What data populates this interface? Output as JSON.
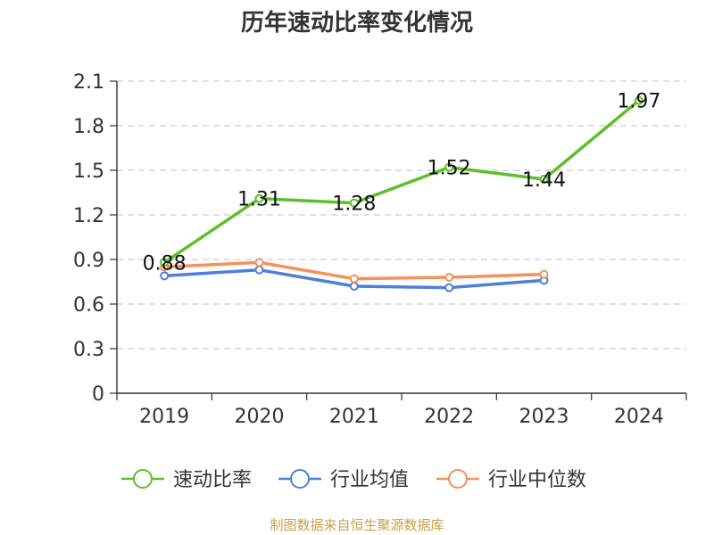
{
  "chart_data": {
    "type": "line",
    "title": "历年速动比率变化情况",
    "categories": [
      "2019",
      "2020",
      "2021",
      "2022",
      "2023",
      "2024"
    ],
    "ylim": [
      0,
      2.1
    ],
    "yticks": [
      "0",
      "0.3",
      "0.6",
      "0.9",
      "1.2",
      "1.5",
      "1.8",
      "2.1"
    ],
    "grid": true,
    "legend_position": "bottom",
    "series": [
      {
        "name": "速动比率",
        "color": "#5cbf2a",
        "values": [
          0.88,
          1.31,
          1.28,
          1.52,
          1.44,
          1.97
        ],
        "labels": [
          "0.88",
          "1.31",
          "1.28",
          "1.52",
          "1.44",
          "1.97"
        ]
      },
      {
        "name": "行业均值",
        "color": "#4e7fdc",
        "values": [
          0.79,
          0.83,
          0.72,
          0.71,
          0.76,
          null
        ]
      },
      {
        "name": "行业中位数",
        "color": "#f5915a",
        "values": [
          0.85,
          0.88,
          0.77,
          0.78,
          0.8,
          null
        ]
      }
    ]
  },
  "source": "制图数据来自恒生聚源数据库"
}
